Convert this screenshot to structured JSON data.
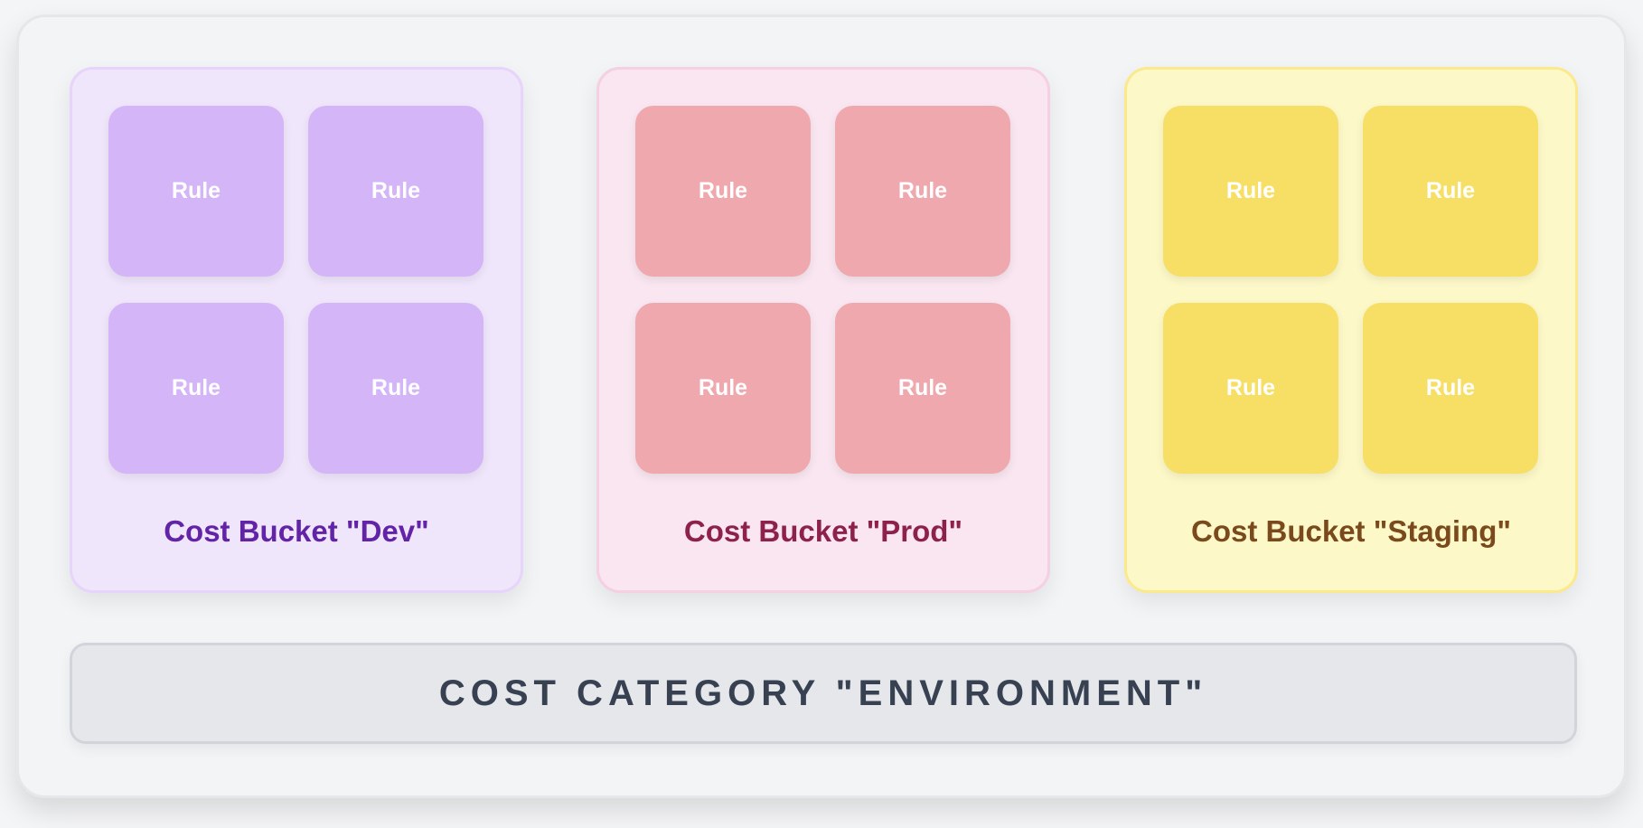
{
  "buckets": [
    {
      "label": "Cost Bucket \"Dev\"",
      "rules": [
        "Rule",
        "Rule",
        "Rule",
        "Rule"
      ],
      "colors": {
        "bg": "#f0e6fc",
        "border": "#e6d4fb",
        "rule": "#d4b5f7",
        "text": "#6223a6"
      }
    },
    {
      "label": "Cost Bucket \"Prod\"",
      "rules": [
        "Rule",
        "Rule",
        "Rule",
        "Rule"
      ],
      "colors": {
        "bg": "#f9e6f0",
        "border": "#f5cfe2",
        "rule": "#efa8ae",
        "text": "#8e214c"
      }
    },
    {
      "label": "Cost Bucket \"Staging\"",
      "rules": [
        "Rule",
        "Rule",
        "Rule",
        "Rule"
      ],
      "colors": {
        "bg": "#fdf8c8",
        "border": "#fbe98c",
        "rule": "#f7df66",
        "text": "#7a4a1c"
      }
    }
  ],
  "category": {
    "label": "COST CATEGORY \"ENVIRONMENT\""
  }
}
